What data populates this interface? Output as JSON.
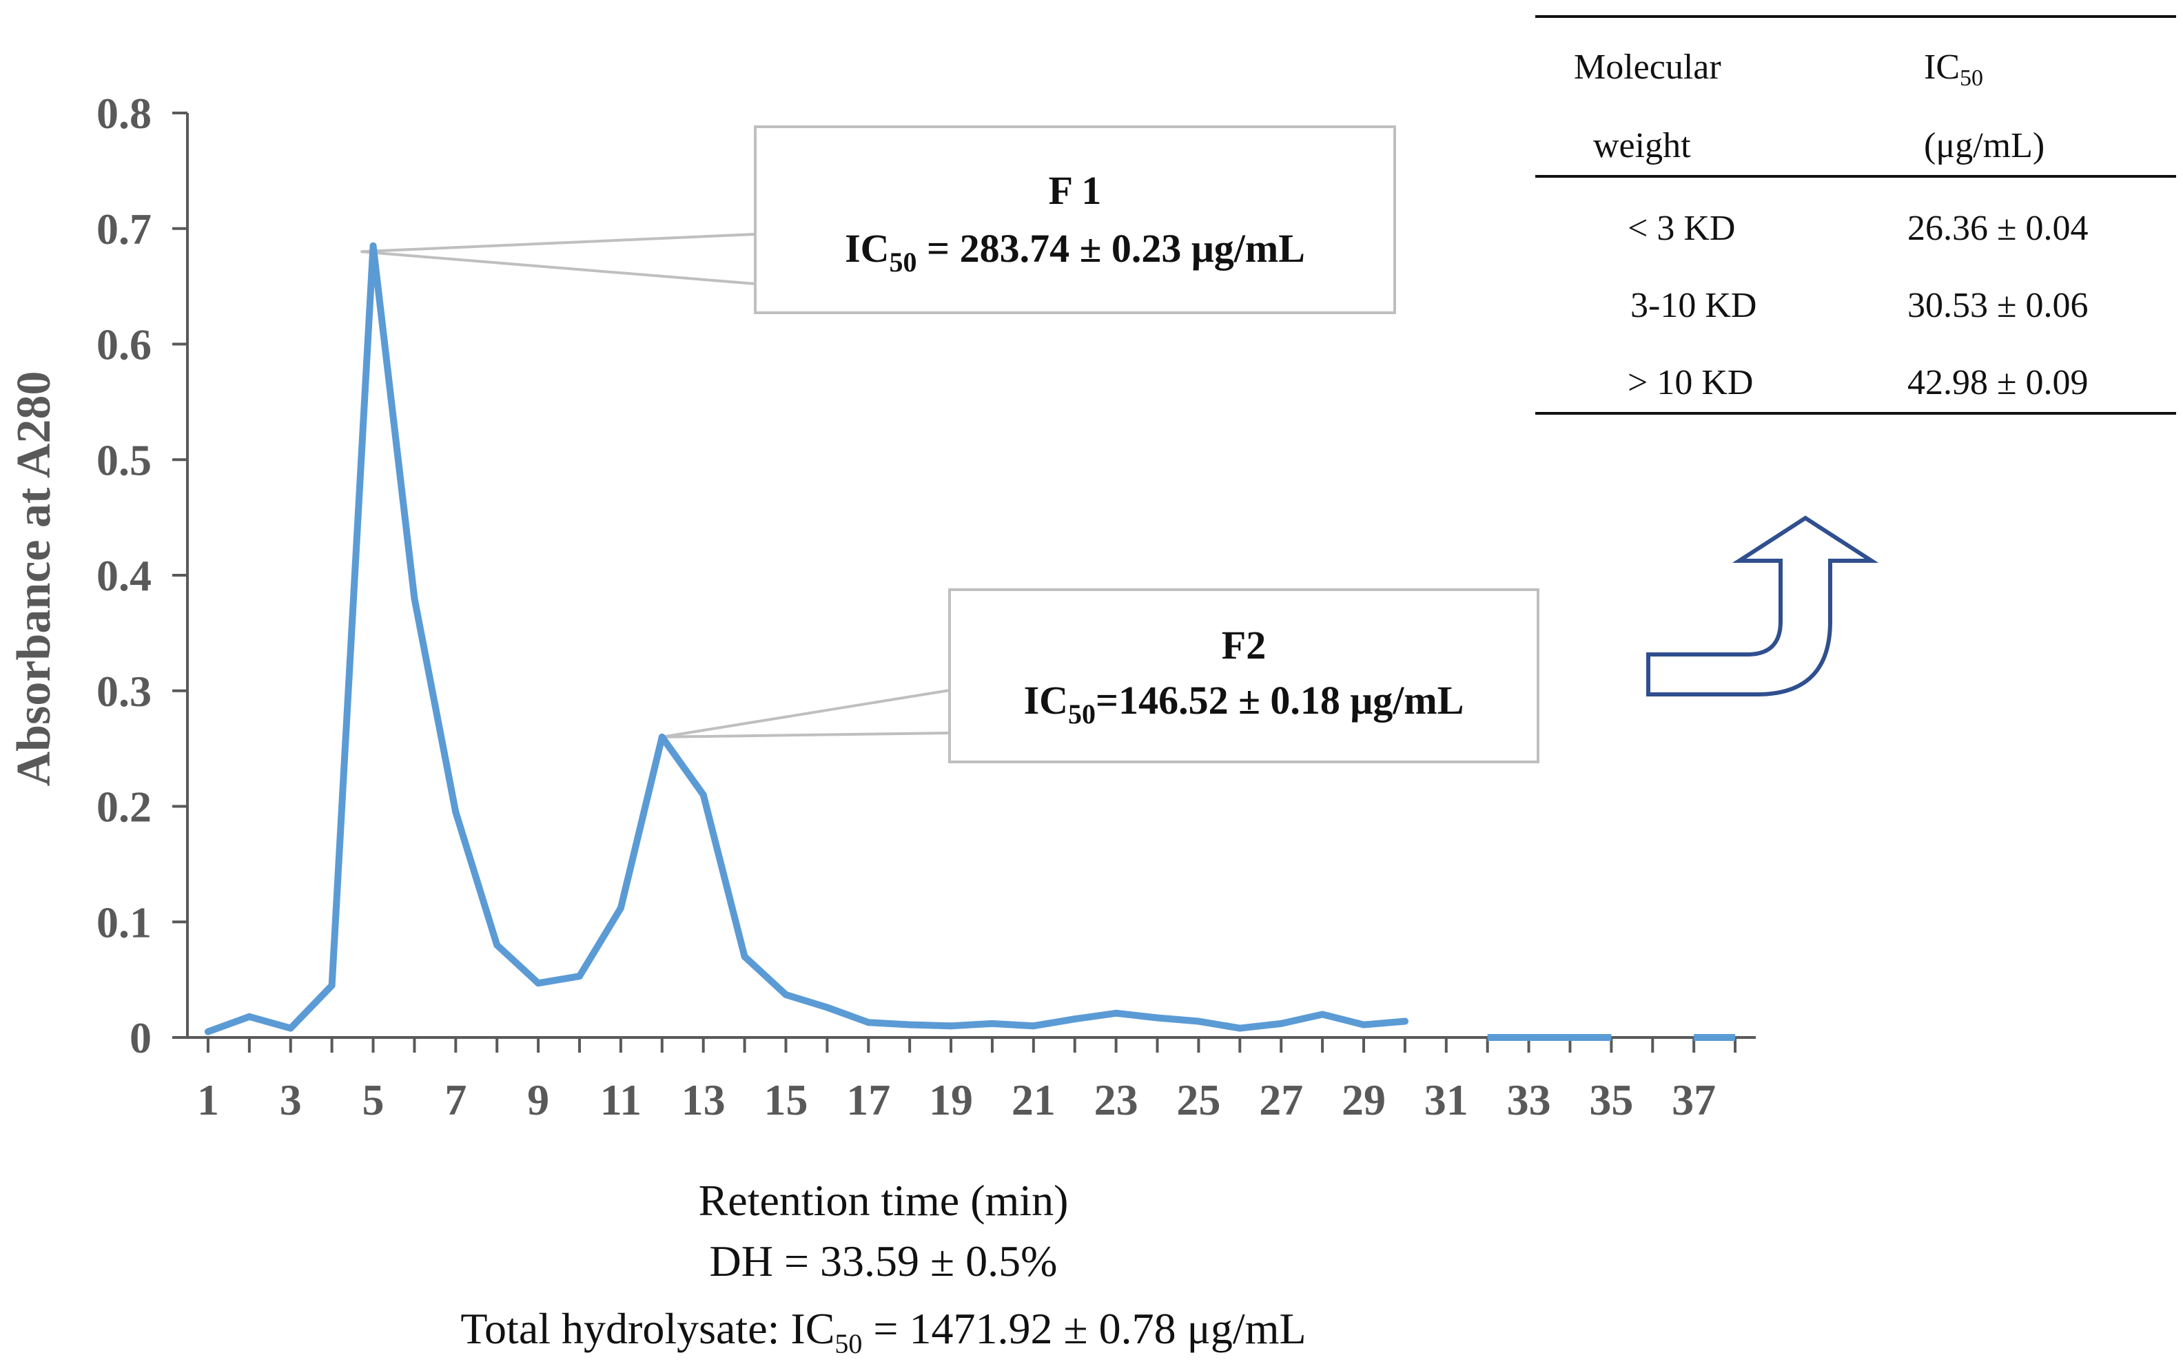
{
  "chart_data": {
    "type": "line",
    "ylabel": "Absorbance at A280",
    "xlabel": "Retention time (min)",
    "caption_dh": "DH = 33.59 ± 0.5%",
    "caption_total_prefix": "Total hydrolysate: IC",
    "caption_total_sub": "50",
    "caption_total_suffix": " = 1471.92 ± 0.78 μg/mL",
    "ylim": [
      0,
      0.8
    ],
    "yticks": [
      "0",
      "0.1",
      "0.2",
      "0.3",
      "0.4",
      "0.5",
      "0.6",
      "0.7",
      "0.8"
    ],
    "xlim": [
      0.5,
      38.5
    ],
    "xticks": [
      "1",
      "3",
      "5",
      "7",
      "9",
      "11",
      "13",
      "15",
      "17",
      "19",
      "21",
      "23",
      "25",
      "27",
      "29",
      "31",
      "33",
      "35",
      "37"
    ],
    "series": [
      {
        "name": "Absorbance",
        "color": "#5B9BD5",
        "x": [
          1,
          2,
          3,
          4,
          5,
          6,
          7,
          8,
          9,
          10,
          11,
          12,
          13,
          14,
          15,
          16,
          17,
          18,
          19,
          20,
          21,
          22,
          23,
          24,
          25,
          26,
          27,
          28,
          29,
          30
        ],
        "values": [
          0.005,
          0.018,
          0.008,
          0.045,
          0.685,
          0.38,
          0.195,
          0.08,
          0.047,
          0.053,
          0.112,
          0.26,
          0.21,
          0.07,
          0.037,
          0.026,
          0.013,
          0.011,
          0.01,
          0.012,
          0.01,
          0.016,
          0.021,
          0.017,
          0.014,
          0.008,
          0.012,
          0.02,
          0.011,
          0.014
        ]
      }
    ],
    "baseline_segments": [
      [
        32,
        35
      ],
      [
        37,
        38
      ]
    ],
    "annotations": [
      {
        "id": "f1",
        "label": "F 1",
        "ic_prefix": "IC",
        "ic_sub": "50",
        "ic_suffix": " = 283.74 ± 0.23 μg/mL",
        "point_x": 4.7,
        "point_y": 0.68
      },
      {
        "id": "f2",
        "label": "F2",
        "ic_prefix": "IC",
        "ic_sub": "50",
        "ic_suffix": "=146.52 ± 0.18 μg/mL",
        "point_x": 12,
        "point_y": 0.26
      }
    ]
  },
  "table": {
    "headers": [
      {
        "line1": "Molecular",
        "line2": "weight"
      },
      {
        "line1_prefix": "IC",
        "line1_sub": "50",
        "line2": "(μg/mL)"
      }
    ],
    "rows": [
      {
        "mw": "< 3 KD",
        "ic50": "26.36 ± 0.04"
      },
      {
        "mw": "3-10 KD",
        "ic50": "30.53 ± 0.06"
      },
      {
        "mw": "> 10 KD",
        "ic50": "42.98 ± 0.09"
      }
    ]
  },
  "arrow_color": "#2F4F8F"
}
